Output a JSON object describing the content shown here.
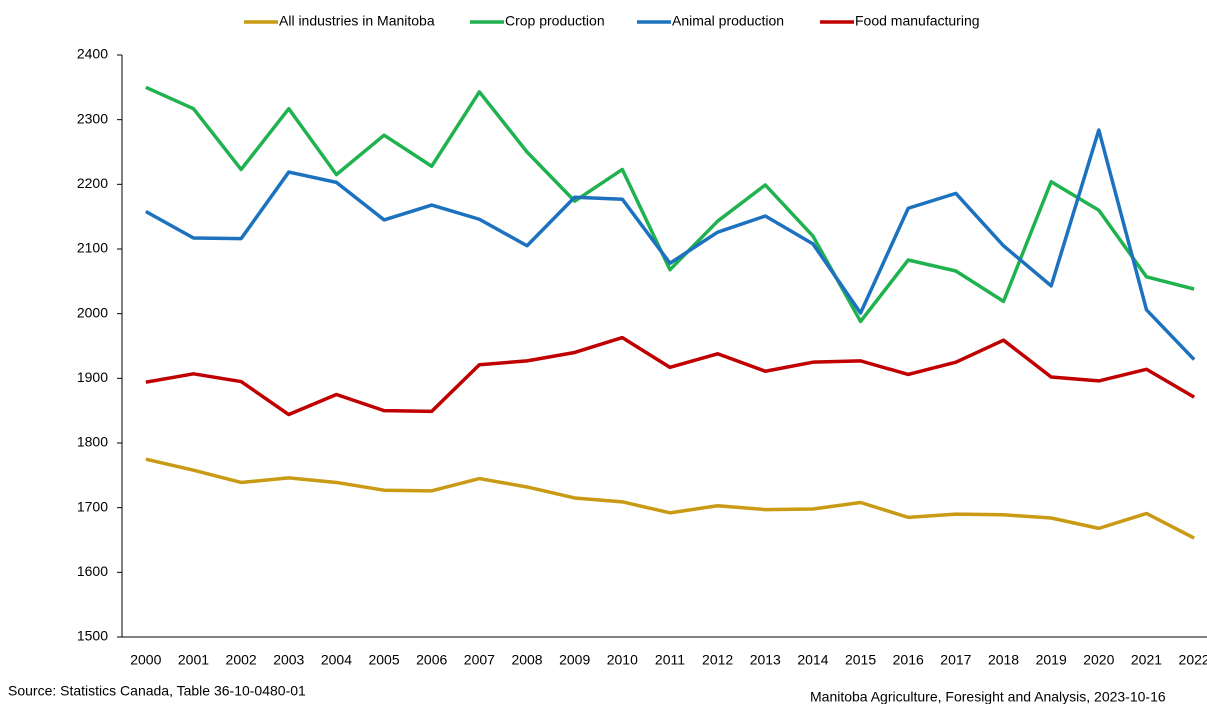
{
  "chart_data": {
    "type": "line",
    "categories": [
      "2000",
      "2001",
      "2002",
      "2003",
      "2004",
      "2005",
      "2006",
      "2007",
      "2008",
      "2009",
      "2010",
      "2011",
      "2012",
      "2013",
      "2014",
      "2015",
      "2016",
      "2017",
      "2018",
      "2019",
      "2020",
      "2021",
      "2022"
    ],
    "series": [
      {
        "name": "All industries in Manitoba",
        "color": "#c99a14",
        "values": [
          1775,
          1758,
          1739,
          1746,
          1739,
          1727,
          1726,
          1745,
          1732,
          1715,
          1709,
          1692,
          1703,
          1697,
          1698,
          1708,
          1685,
          1690,
          1689,
          1684,
          1668,
          1691,
          1653
        ]
      },
      {
        "name": "Crop production",
        "color": "#1fb24f",
        "values": [
          2350,
          2317,
          2223,
          2317,
          2215,
          2276,
          2228,
          2343,
          2250,
          2174,
          2223,
          2068,
          2143,
          2199,
          2120,
          1988,
          2083,
          2066,
          2019,
          2204,
          2160,
          2057,
          2038
        ]
      },
      {
        "name": "Animal production",
        "color": "#1c72bf",
        "values": [
          2158,
          2117,
          2116,
          2219,
          2203,
          2145,
          2168,
          2146,
          2105,
          2180,
          2177,
          2078,
          2126,
          2151,
          2108,
          2001,
          2163,
          2186,
          2105,
          2043,
          2284,
          2006,
          1929
        ]
      },
      {
        "name": "Food manufacturing",
        "color": "#c00000",
        "values": [
          1894,
          1907,
          1895,
          1844,
          1875,
          1850,
          1849,
          1921,
          1927,
          1940,
          1963,
          1917,
          1938,
          1911,
          1925,
          1927,
          1906,
          1925,
          1959,
          1902,
          1896,
          1914,
          1871
        ]
      }
    ],
    "ylim": [
      1500,
      2400
    ],
    "yticks": [
      1500,
      1600,
      1700,
      1800,
      1900,
      2000,
      2100,
      2200,
      2300,
      2400
    ],
    "grid": false,
    "legend": "top",
    "source": "Source: Statistics Canada, Table 36-10-0480-01",
    "credit": "Manitoba Agriculture, Foresight and Analysis, 2023-10-16"
  }
}
